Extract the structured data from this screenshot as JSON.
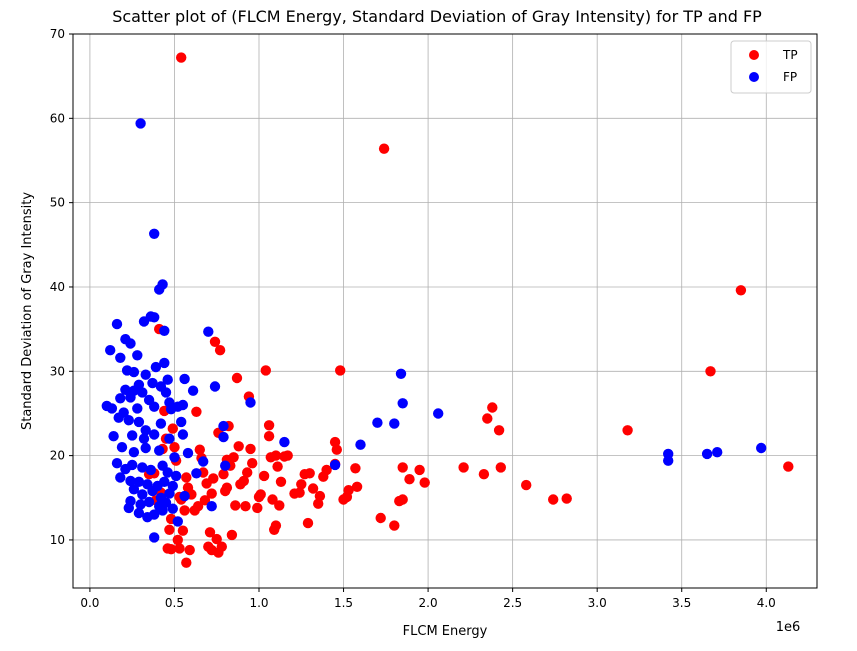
{
  "chart_data": {
    "type": "scatter",
    "title": "Scatter plot of (FLCM Energy, Standard Deviation of Gray Intensity) for TP and FP",
    "xlabel": "FLCM Energy",
    "ylabel": "Standard Deviation of Gray Intensity",
    "x_offset_label": "1e6",
    "xlim": [
      -0.1,
      4.3
    ],
    "ylim": [
      4.3,
      70
    ],
    "x_ticks": [
      0.0,
      0.5,
      1.0,
      1.5,
      2.0,
      2.5,
      3.0,
      3.5,
      4.0
    ],
    "x_tick_labels": [
      "0.0",
      "0.5",
      "1.0",
      "1.5",
      "2.0",
      "2.5",
      "3.0",
      "3.5",
      "4.0"
    ],
    "y_ticks": [
      10,
      20,
      30,
      40,
      50,
      60,
      70
    ],
    "y_tick_labels": [
      "10",
      "20",
      "30",
      "40",
      "50",
      "60",
      "70"
    ],
    "grid": true,
    "legend_position": "top-right",
    "series": [
      {
        "name": "TP",
        "color": "#ff0000",
        "points": [
          [
            0.54,
            67.2
          ],
          [
            1.74,
            56.4
          ],
          [
            3.85,
            39.6
          ],
          [
            3.67,
            30.0
          ],
          [
            4.13,
            18.7
          ],
          [
            3.18,
            23.0
          ],
          [
            2.82,
            14.9
          ],
          [
            2.74,
            14.8
          ],
          [
            2.58,
            16.5
          ],
          [
            2.43,
            18.6
          ],
          [
            2.42,
            23.0
          ],
          [
            2.38,
            25.7
          ],
          [
            2.35,
            24.4
          ],
          [
            2.33,
            17.8
          ],
          [
            2.21,
            18.6
          ],
          [
            1.98,
            16.8
          ],
          [
            1.95,
            18.3
          ],
          [
            1.89,
            17.2
          ],
          [
            1.85,
            18.6
          ],
          [
            1.85,
            14.8
          ],
          [
            1.83,
            14.6
          ],
          [
            1.8,
            11.7
          ],
          [
            1.72,
            12.6
          ],
          [
            1.57,
            18.5
          ],
          [
            1.58,
            16.3
          ],
          [
            1.53,
            15.9
          ],
          [
            1.52,
            15.1
          ],
          [
            1.5,
            14.8
          ],
          [
            1.48,
            30.1
          ],
          [
            1.45,
            21.6
          ],
          [
            1.46,
            20.7
          ],
          [
            1.45,
            19.0
          ],
          [
            1.4,
            18.3
          ],
          [
            1.38,
            17.5
          ],
          [
            1.36,
            15.2
          ],
          [
            1.35,
            14.3
          ],
          [
            1.32,
            16.1
          ],
          [
            1.3,
            17.9
          ],
          [
            1.29,
            12.0
          ],
          [
            1.27,
            17.8
          ],
          [
            1.25,
            16.6
          ],
          [
            1.24,
            15.6
          ],
          [
            1.21,
            15.5
          ],
          [
            1.17,
            20.0
          ],
          [
            1.15,
            19.9
          ],
          [
            1.13,
            16.9
          ],
          [
            1.12,
            14.1
          ],
          [
            1.11,
            18.7
          ],
          [
            1.1,
            11.7
          ],
          [
            1.09,
            11.2
          ],
          [
            1.08,
            14.8
          ],
          [
            1.07,
            19.8
          ],
          [
            1.06,
            22.3
          ],
          [
            1.06,
            23.6
          ],
          [
            1.04,
            30.1
          ],
          [
            1.03,
            17.6
          ],
          [
            1.01,
            15.4
          ],
          [
            1.0,
            15.1
          ],
          [
            0.99,
            13.8
          ],
          [
            0.96,
            19.1
          ],
          [
            0.95,
            20.8
          ],
          [
            0.94,
            27.0
          ],
          [
            0.93,
            18.0
          ],
          [
            0.92,
            14.0
          ],
          [
            0.91,
            17.0
          ],
          [
            0.89,
            16.6
          ],
          [
            0.88,
            21.1
          ],
          [
            0.87,
            29.2
          ],
          [
            0.86,
            14.1
          ],
          [
            0.85,
            19.8
          ],
          [
            0.83,
            18.8
          ],
          [
            0.82,
            23.5
          ],
          [
            0.81,
            16.2
          ],
          [
            0.8,
            15.8
          ],
          [
            0.79,
            17.8
          ],
          [
            0.77,
            32.5
          ],
          [
            0.76,
            22.7
          ],
          [
            0.75,
            10.1
          ],
          [
            0.74,
            33.5
          ],
          [
            0.73,
            17.3
          ],
          [
            0.72,
            15.5
          ],
          [
            0.71,
            10.9
          ],
          [
            0.7,
            9.2
          ],
          [
            0.69,
            16.7
          ],
          [
            0.68,
            14.7
          ],
          [
            0.67,
            18.0
          ],
          [
            0.66,
            19.7
          ],
          [
            0.65,
            20.7
          ],
          [
            0.64,
            14.0
          ],
          [
            0.63,
            25.2
          ],
          [
            0.62,
            13.5
          ],
          [
            0.6,
            15.4
          ],
          [
            0.58,
            16.2
          ],
          [
            0.57,
            17.4
          ],
          [
            0.56,
            13.5
          ],
          [
            0.55,
            11.1
          ],
          [
            0.54,
            14.8
          ],
          [
            0.53,
            15.1
          ],
          [
            0.52,
            10.0
          ],
          [
            0.51,
            19.4
          ],
          [
            0.5,
            21.0
          ],
          [
            0.49,
            23.2
          ],
          [
            0.48,
            12.5
          ],
          [
            0.47,
            11.2
          ],
          [
            0.46,
            9.0
          ],
          [
            0.45,
            22.0
          ],
          [
            0.44,
            25.3
          ],
          [
            0.43,
            20.8
          ],
          [
            0.42,
            15.6
          ],
          [
            0.41,
            35.0
          ],
          [
            0.39,
            14.7
          ],
          [
            0.38,
            17.9
          ],
          [
            0.35,
            17.8
          ],
          [
            0.57,
            7.3
          ],
          [
            0.59,
            8.8
          ],
          [
            0.72,
            8.8
          ],
          [
            0.76,
            8.5
          ],
          [
            0.78,
            9.2
          ],
          [
            0.84,
            10.6
          ],
          [
            0.48,
            8.9
          ],
          [
            0.53,
            9.0
          ],
          [
            0.81,
            19.5
          ],
          [
            1.1,
            20.0
          ]
        ]
      },
      {
        "name": "FP",
        "color": "#0000ff",
        "points": [
          [
            0.3,
            59.4
          ],
          [
            0.38,
            46.3
          ],
          [
            0.43,
            40.3
          ],
          [
            0.41,
            39.7
          ],
          [
            0.38,
            36.4
          ],
          [
            0.36,
            36.5
          ],
          [
            0.16,
            35.6
          ],
          [
            0.32,
            35.9
          ],
          [
            0.44,
            34.8
          ],
          [
            0.7,
            34.7
          ],
          [
            0.21,
            33.8
          ],
          [
            0.24,
            33.3
          ],
          [
            0.12,
            32.5
          ],
          [
            0.18,
            31.6
          ],
          [
            0.28,
            31.9
          ],
          [
            0.39,
            30.5
          ],
          [
            0.44,
            31.0
          ],
          [
            0.22,
            30.1
          ],
          [
            0.26,
            29.9
          ],
          [
            0.33,
            29.6
          ],
          [
            0.46,
            29.0
          ],
          [
            0.56,
            29.1
          ],
          [
            0.29,
            28.4
          ],
          [
            0.37,
            28.6
          ],
          [
            0.42,
            28.2
          ],
          [
            0.74,
            28.2
          ],
          [
            0.21,
            27.8
          ],
          [
            0.26,
            27.7
          ],
          [
            0.31,
            27.5
          ],
          [
            0.45,
            27.5
          ],
          [
            0.61,
            27.7
          ],
          [
            0.18,
            26.8
          ],
          [
            0.24,
            26.9
          ],
          [
            0.35,
            26.6
          ],
          [
            0.47,
            26.3
          ],
          [
            0.55,
            26.0
          ],
          [
            0.95,
            26.3
          ],
          [
            1.85,
            26.2
          ],
          [
            0.1,
            25.9
          ],
          [
            0.13,
            25.6
          ],
          [
            0.2,
            25.1
          ],
          [
            0.28,
            25.6
          ],
          [
            0.38,
            25.8
          ],
          [
            0.48,
            25.5
          ],
          [
            0.52,
            25.8
          ],
          [
            1.84,
            29.7
          ],
          [
            2.06,
            25.0
          ],
          [
            1.7,
            23.9
          ],
          [
            1.8,
            23.8
          ],
          [
            0.17,
            24.5
          ],
          [
            0.23,
            24.2
          ],
          [
            0.29,
            24.0
          ],
          [
            0.33,
            23.0
          ],
          [
            0.42,
            23.8
          ],
          [
            0.54,
            24.0
          ],
          [
            0.79,
            23.5
          ],
          [
            0.14,
            22.3
          ],
          [
            0.25,
            22.4
          ],
          [
            0.32,
            22.0
          ],
          [
            0.38,
            22.5
          ],
          [
            0.47,
            22.0
          ],
          [
            0.55,
            22.5
          ],
          [
            0.79,
            22.2
          ],
          [
            1.15,
            21.6
          ],
          [
            1.6,
            21.3
          ],
          [
            0.19,
            21.0
          ],
          [
            0.26,
            20.4
          ],
          [
            0.33,
            20.9
          ],
          [
            0.41,
            20.6
          ],
          [
            0.5,
            19.8
          ],
          [
            0.58,
            20.3
          ],
          [
            0.67,
            19.3
          ],
          [
            1.45,
            18.9
          ],
          [
            0.16,
            19.1
          ],
          [
            0.21,
            18.4
          ],
          [
            0.25,
            18.9
          ],
          [
            0.31,
            18.6
          ],
          [
            0.36,
            18.3
          ],
          [
            0.43,
            18.8
          ],
          [
            0.46,
            18.0
          ],
          [
            0.51,
            17.6
          ],
          [
            0.63,
            17.9
          ],
          [
            0.8,
            18.8
          ],
          [
            0.18,
            17.4
          ],
          [
            0.24,
            17.0
          ],
          [
            0.29,
            16.9
          ],
          [
            0.34,
            16.6
          ],
          [
            0.4,
            16.4
          ],
          [
            0.44,
            16.9
          ],
          [
            0.49,
            16.4
          ],
          [
            0.26,
            16.0
          ],
          [
            0.31,
            15.4
          ],
          [
            0.37,
            15.8
          ],
          [
            0.42,
            15.0
          ],
          [
            0.47,
            15.5
          ],
          [
            0.56,
            15.2
          ],
          [
            0.24,
            14.6
          ],
          [
            0.3,
            14.2
          ],
          [
            0.35,
            14.5
          ],
          [
            0.41,
            14.0
          ],
          [
            0.45,
            14.4
          ],
          [
            0.49,
            13.7
          ],
          [
            0.23,
            13.8
          ],
          [
            0.29,
            13.2
          ],
          [
            0.34,
            12.7
          ],
          [
            0.38,
            13.0
          ],
          [
            0.43,
            13.5
          ],
          [
            0.52,
            12.2
          ],
          [
            0.72,
            14.0
          ],
          [
            0.38,
            10.3
          ],
          [
            3.42,
            20.2
          ],
          [
            3.42,
            19.4
          ],
          [
            3.65,
            20.2
          ],
          [
            3.71,
            20.4
          ],
          [
            3.97,
            20.9
          ]
        ]
      }
    ]
  }
}
